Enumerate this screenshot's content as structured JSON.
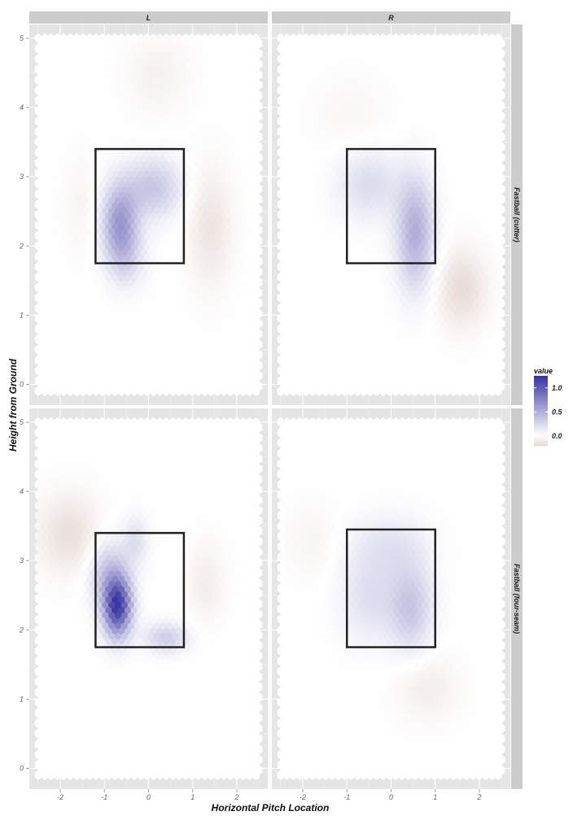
{
  "chart_data": {
    "type": "heatmap",
    "subtype": "hexbin",
    "xlabel": "Horizontal Pitch Location",
    "ylabel": "Height from Ground",
    "xlim": [
      -2.7,
      2.7
    ],
    "ylim": [
      -0.3,
      5.2
    ],
    "x_ticks": [
      -2,
      -1,
      0,
      1,
      2
    ],
    "y_ticks": [
      0,
      1,
      2,
      3,
      4,
      5
    ],
    "x_tick_labels": [
      "-2",
      "-1",
      "0",
      "1",
      "2"
    ],
    "y_tick_labels": [
      "0",
      "1",
      "2",
      "3",
      "4",
      "5"
    ],
    "col_facets": [
      "L",
      "R"
    ],
    "row_facets": [
      "Fastball (cutter)",
      "Fastball (four-seam)"
    ],
    "legend": {
      "title": "value",
      "position": "right",
      "breaks": [
        1.0,
        0.5,
        0.0
      ],
      "labels": [
        "1.0",
        "0.5",
        "0.0"
      ],
      "range": [
        -0.2,
        1.25
      ],
      "low_color": "#e8dcd8",
      "mid_color": "#ffffff",
      "high_color": "#3b36a0"
    },
    "panels": [
      {
        "row": "Fastball (cutter)",
        "col": "L",
        "strike_zone": {
          "x": [
            -1.2,
            0.8
          ],
          "y": [
            1.75,
            3.4
          ]
        },
        "blobs": [
          {
            "x": -0.65,
            "y": 2.35,
            "peak": 0.6,
            "sx": 0.28,
            "sy": 0.38
          },
          {
            "x": 0.1,
            "y": 2.85,
            "peak": 0.35,
            "sx": 0.45,
            "sy": 0.3
          },
          {
            "x": -0.5,
            "y": 1.85,
            "peak": 0.2,
            "sx": 0.3,
            "sy": 0.3
          },
          {
            "x": 1.4,
            "y": 2.3,
            "peak": -0.15,
            "sx": 0.35,
            "sy": 0.6
          },
          {
            "x": 0.2,
            "y": 4.5,
            "peak": -0.08,
            "sx": 0.5,
            "sy": 0.4
          },
          {
            "x": -1.5,
            "y": 2.6,
            "peak": -0.06,
            "sx": 0.3,
            "sy": 0.5
          }
        ]
      },
      {
        "row": "Fastball (cutter)",
        "col": "R",
        "strike_zone": {
          "x": [
            -1.0,
            1.0
          ],
          "y": [
            1.75,
            3.4
          ]
        },
        "blobs": [
          {
            "x": 0.55,
            "y": 2.2,
            "peak": 0.5,
            "sx": 0.3,
            "sy": 0.55
          },
          {
            "x": -0.5,
            "y": 2.9,
            "peak": 0.22,
            "sx": 0.5,
            "sy": 0.35
          },
          {
            "x": 1.6,
            "y": 1.4,
            "peak": -0.2,
            "sx": 0.4,
            "sy": 0.4
          },
          {
            "x": -0.9,
            "y": 3.9,
            "peak": -0.05,
            "sx": 0.6,
            "sy": 0.4
          }
        ]
      },
      {
        "row": "Fastball (four-seam)",
        "col": "L",
        "strike_zone": {
          "x": [
            -1.2,
            0.8
          ],
          "y": [
            1.75,
            3.4
          ]
        },
        "blobs": [
          {
            "x": -0.7,
            "y": 2.35,
            "peak": 1.15,
            "sx": 0.22,
            "sy": 0.3
          },
          {
            "x": -0.9,
            "y": 2.8,
            "peak": 0.35,
            "sx": 0.3,
            "sy": 0.35
          },
          {
            "x": 0.4,
            "y": 1.9,
            "peak": 0.3,
            "sx": 0.35,
            "sy": 0.15
          },
          {
            "x": -0.3,
            "y": 3.3,
            "peak": 0.2,
            "sx": 0.2,
            "sy": 0.25
          },
          {
            "x": -1.8,
            "y": 3.4,
            "peak": -0.18,
            "sx": 0.5,
            "sy": 0.4
          },
          {
            "x": 1.3,
            "y": 2.7,
            "peak": -0.1,
            "sx": 0.3,
            "sy": 0.4
          }
        ]
      },
      {
        "row": "Fastball (four-seam)",
        "col": "R",
        "strike_zone": {
          "x": [
            -1.0,
            1.0
          ],
          "y": [
            1.75,
            3.45
          ]
        },
        "blobs": [
          {
            "x": 0.45,
            "y": 2.35,
            "peak": 0.35,
            "sx": 0.35,
            "sy": 0.45
          },
          {
            "x": -0.5,
            "y": 2.5,
            "peak": 0.2,
            "sx": 0.45,
            "sy": 0.45
          },
          {
            "x": 0.0,
            "y": 3.25,
            "peak": 0.15,
            "sx": 0.6,
            "sy": 0.3
          },
          {
            "x": 0.8,
            "y": 1.2,
            "peak": -0.1,
            "sx": 0.5,
            "sy": 0.35
          },
          {
            "x": -1.8,
            "y": 3.3,
            "peak": -0.06,
            "sx": 0.4,
            "sy": 0.4
          }
        ]
      }
    ]
  }
}
